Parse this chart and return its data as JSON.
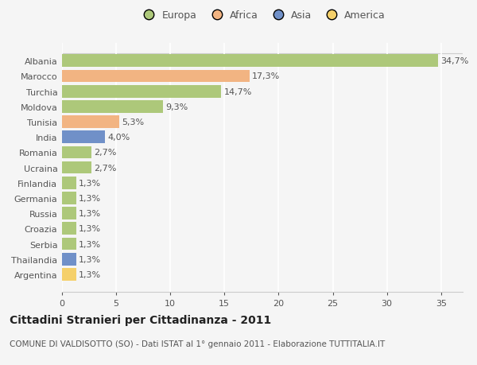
{
  "countries": [
    "Albania",
    "Marocco",
    "Turchia",
    "Moldova",
    "Tunisia",
    "India",
    "Romania",
    "Ucraina",
    "Finlandia",
    "Germania",
    "Russia",
    "Croazia",
    "Serbia",
    "Thailandia",
    "Argentina"
  ],
  "values": [
    34.7,
    17.3,
    14.7,
    9.3,
    5.3,
    4.0,
    2.7,
    2.7,
    1.3,
    1.3,
    1.3,
    1.3,
    1.3,
    1.3,
    1.3
  ],
  "labels": [
    "34,7%",
    "17,3%",
    "14,7%",
    "9,3%",
    "5,3%",
    "4,0%",
    "2,7%",
    "2,7%",
    "1,3%",
    "1,3%",
    "1,3%",
    "1,3%",
    "1,3%",
    "1,3%",
    "1,3%"
  ],
  "colors": [
    "#adc87a",
    "#f2b482",
    "#adc87a",
    "#adc87a",
    "#f2b482",
    "#7090c8",
    "#adc87a",
    "#adc87a",
    "#adc87a",
    "#adc87a",
    "#adc87a",
    "#adc87a",
    "#adc87a",
    "#7090c8",
    "#f5d06a"
  ],
  "legend_labels": [
    "Europa",
    "Africa",
    "Asia",
    "America"
  ],
  "legend_colors": [
    "#adc87a",
    "#f2b482",
    "#7090c8",
    "#f5d06a"
  ],
  "xlim": [
    0,
    37
  ],
  "xticks": [
    0,
    5,
    10,
    15,
    20,
    25,
    30,
    35
  ],
  "title": "Cittadini Stranieri per Cittadinanza - 2011",
  "subtitle": "COMUNE DI VALDISOTTO (SO) - Dati ISTAT al 1° gennaio 2011 - Elaborazione TUTTITALIA.IT",
  "bg_color": "#f5f5f5",
  "grid_color": "#ffffff",
  "bar_height": 0.82,
  "label_fontsize": 8,
  "tick_fontsize": 8,
  "title_fontsize": 10,
  "subtitle_fontsize": 7.5
}
